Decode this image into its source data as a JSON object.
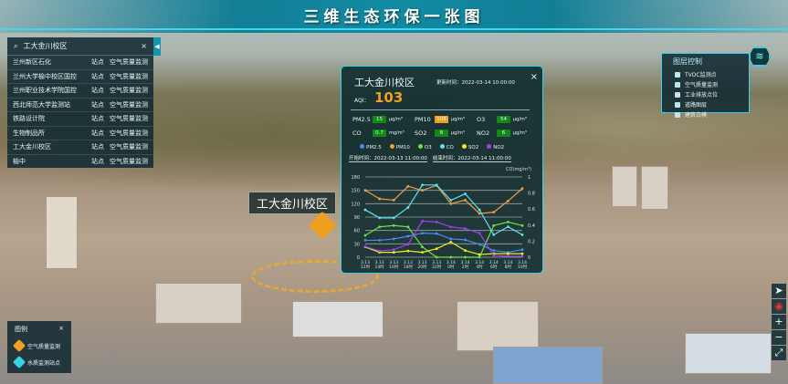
{
  "header": {
    "title": "三维生态环保一张图"
  },
  "search": {
    "value": "工大金川校区",
    "clear": "×",
    "handle": "◀",
    "rows": [
      {
        "name": "兰州新区石化",
        "type": "站点",
        "status": "空气质量监测"
      },
      {
        "name": "兰州大学榆中校区国控",
        "type": "站点",
        "status": "空气质量监测"
      },
      {
        "name": "兰州职业技术学院国控",
        "type": "站点",
        "status": "空气质量监测"
      },
      {
        "name": "西北师范大学监测站",
        "type": "站点",
        "status": "空气质量监测"
      },
      {
        "name": "铁路设计院",
        "type": "站点",
        "status": "空气质量监测"
      },
      {
        "name": "生物制品所",
        "type": "站点",
        "status": "空气质量监测"
      },
      {
        "name": "工大金川校区",
        "type": "站点",
        "status": "空气质量监测"
      },
      {
        "name": "榆中",
        "type": "站点",
        "status": "空气质量监测"
      }
    ]
  },
  "scene_label": "工大金川校区",
  "card": {
    "title": "工大金川校区",
    "updated": "更新时间：2022-03-14 10:00:00",
    "close": "×",
    "aqi_label": "AQI：",
    "aqi": "103",
    "pollutants": [
      {
        "name": "PM2.5",
        "value": "15",
        "unit": "μg/m³",
        "color": "#118818"
      },
      {
        "name": "PM10",
        "value": "108",
        "unit": "μg/m³",
        "color": "#f0a020"
      },
      {
        "name": "O3",
        "value": "54",
        "unit": "μg/m³",
        "color": "#118818"
      },
      {
        "name": "CO",
        "value": "0.7",
        "unit": "mg/m³",
        "color": "#118818"
      },
      {
        "name": "SO2",
        "value": "8",
        "unit": "μg/m³",
        "color": "#118818"
      },
      {
        "name": "NO2",
        "value": "6",
        "unit": "μg/m³",
        "color": "#118818"
      }
    ],
    "start": "开始时间：2022-03-13 11:00:00",
    "end": "结束时间：2022-03-14 11:00:00"
  },
  "chart_data": {
    "type": "line",
    "categories": [
      "3.13 12时",
      "3.13 14时",
      "3.13 16时",
      "3.13 18时",
      "3.13 20时",
      "3.13 22时",
      "3.14 0时",
      "3.14 2时",
      "3.14 4时",
      "3.14 6时",
      "3.14 8时",
      "3.14 10时"
    ],
    "y_left": {
      "range": [
        0,
        180
      ],
      "ticks": [
        0,
        30,
        60,
        90,
        120,
        150,
        180
      ]
    },
    "y_right": {
      "label": "CO(mg/m³)",
      "range": [
        0,
        1
      ],
      "ticks": [
        0,
        0.2,
        0.4,
        0.6,
        0.8,
        1
      ]
    },
    "legend_position": "top",
    "series": [
      {
        "name": "PM2.5",
        "color": "#4a8cf0",
        "axis": "left",
        "values": [
          38,
          38,
          41,
          47,
          54,
          53,
          41,
          39,
          29,
          15,
          11,
          17
        ]
      },
      {
        "name": "PM10",
        "color": "#f0a040",
        "axis": "left",
        "values": [
          150,
          131,
          128,
          159,
          150,
          161,
          120,
          128,
          98,
          101,
          126,
          154
        ]
      },
      {
        "name": "O3",
        "color": "#70e040",
        "axis": "left",
        "values": [
          49,
          68,
          71,
          68,
          23,
          0,
          0,
          0,
          0,
          71,
          79,
          71
        ]
      },
      {
        "name": "CO",
        "color": "#60e0f0",
        "axis": "right",
        "values": [
          0.59,
          0.49,
          0.49,
          0.62,
          0.9,
          0.9,
          0.71,
          0.79,
          0.59,
          0.28,
          0.38,
          0.28
        ]
      },
      {
        "name": "SO2",
        "color": "#f0f020",
        "axis": "left",
        "values": [
          23,
          11,
          11,
          14,
          11,
          19,
          34,
          15,
          6,
          8,
          8,
          8
        ]
      },
      {
        "name": "NO2",
        "color": "#a040f0",
        "axis": "left",
        "values": [
          24,
          14,
          17,
          29,
          81,
          79,
          68,
          64,
          54,
          4,
          2,
          2
        ]
      }
    ]
  },
  "layers": {
    "title": "图层控制",
    "items": [
      "TVOC监测点",
      "空气质量监测",
      "工业排放点位",
      "道路图层",
      "建筑白模"
    ]
  },
  "legend": {
    "title": "图例",
    "close": "×",
    "items": [
      {
        "label": "空气质量监测",
        "color": "#f0a020"
      },
      {
        "label": "水质监测站点",
        "color": "#35d2e8"
      }
    ]
  },
  "controls": {
    "locate": "➤",
    "compass": "◉",
    "zoom_in": "+",
    "zoom_out": "−",
    "fullscreen": "⤢"
  }
}
